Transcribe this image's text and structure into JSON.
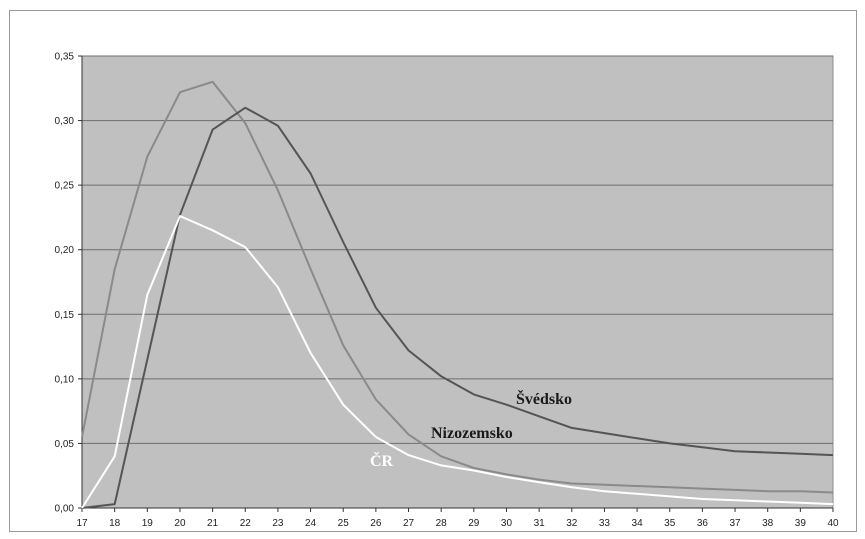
{
  "chart_data": {
    "type": "line",
    "title": "",
    "xlabel": "",
    "ylabel": "",
    "x": [
      17,
      18,
      19,
      20,
      21,
      22,
      23,
      24,
      25,
      26,
      27,
      28,
      29,
      30,
      31,
      32,
      33,
      34,
      35,
      36,
      37,
      38,
      39,
      40
    ],
    "x_tick_labels": [
      "17",
      "18",
      "19",
      "20",
      "21",
      "22",
      "23",
      "24",
      "25",
      "26",
      "27",
      "28",
      "29",
      "30",
      "31",
      "32",
      "33",
      "34",
      "35",
      "36",
      "37",
      "38",
      "39",
      "40"
    ],
    "ylim": [
      0,
      0.35
    ],
    "y_ticks": [
      0,
      0.05,
      0.1,
      0.15,
      0.2,
      0.25,
      0.3,
      0.35
    ],
    "y_tick_labels": [
      "0,00",
      "0,05",
      "0,10",
      "0,15",
      "0,20",
      "0,25",
      "0,30",
      "0,35"
    ],
    "grid": true,
    "legend": "none",
    "plot_background": "#c0c0c0",
    "series": [
      {
        "name": "Nizozemsko",
        "color": "#8a8a8a",
        "values": [
          0.055,
          0.185,
          0.272,
          0.322,
          0.33,
          0.298,
          0.246,
          0.185,
          0.126,
          0.084,
          0.057,
          0.04,
          0.031,
          0.026,
          0.022,
          0.019,
          0.018,
          0.017,
          0.016,
          0.015,
          0.014,
          0.013,
          0.013,
          0.012
        ]
      },
      {
        "name": "Švédsko",
        "color": "#555555",
        "values": [
          0.0,
          0.003,
          0.115,
          0.227,
          0.293,
          0.31,
          0.296,
          0.259,
          0.206,
          0.155,
          0.122,
          0.102,
          0.088,
          0.08,
          0.071,
          0.062,
          0.058,
          0.054,
          0.05,
          0.047,
          0.044,
          0.043,
          0.042,
          0.041
        ]
      },
      {
        "name": "ČR",
        "color": "#ffffff",
        "values": [
          0.0,
          0.04,
          0.165,
          0.226,
          0.215,
          0.202,
          0.171,
          0.12,
          0.08,
          0.055,
          0.041,
          0.033,
          0.029,
          0.024,
          0.02,
          0.016,
          0.013,
          0.011,
          0.009,
          0.007,
          0.006,
          0.005,
          0.004,
          0.003
        ]
      }
    ]
  }
}
